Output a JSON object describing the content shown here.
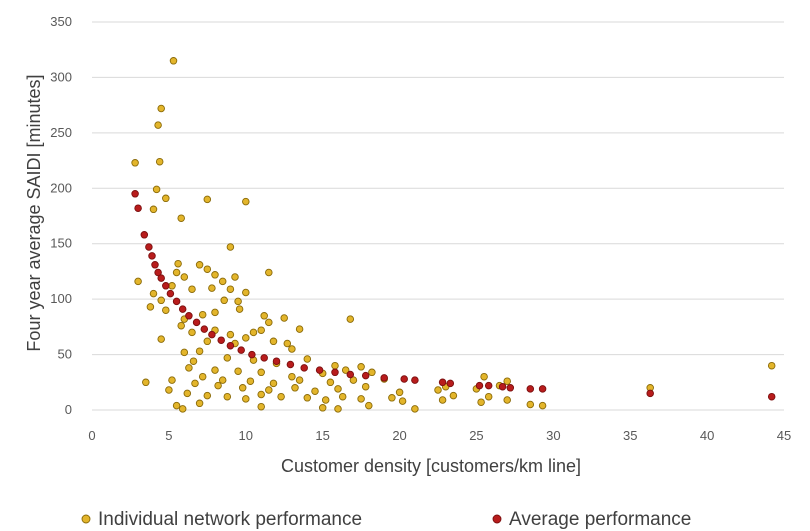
{
  "chart_data": {
    "type": "scatter",
    "xlabel": "Customer density [customers/km line]",
    "ylabel": "Four year average SAIDI [minutes]",
    "xlim": [
      0,
      45
    ],
    "ylim": [
      0,
      350
    ],
    "xticks": [
      0,
      5,
      10,
      15,
      20,
      25,
      30,
      35,
      40,
      45
    ],
    "yticks": [
      0,
      50,
      100,
      150,
      200,
      250,
      300,
      350
    ],
    "grid": "horizontal",
    "legend": "bottom",
    "series": [
      {
        "name": "Individual network performance",
        "color": "#e3b52b",
        "edge": "#8a6a08",
        "points": [
          [
            5.3,
            315
          ],
          [
            4.5,
            272
          ],
          [
            4.3,
            257
          ],
          [
            2.8,
            223
          ],
          [
            4.4,
            224
          ],
          [
            4.2,
            199
          ],
          [
            4.8,
            191
          ],
          [
            4.0,
            181
          ],
          [
            5.8,
            173
          ],
          [
            7.5,
            190
          ],
          [
            10.0,
            188
          ],
          [
            9.0,
            147
          ],
          [
            3.0,
            116
          ],
          [
            5.6,
            132
          ],
          [
            5.5,
            124
          ],
          [
            7.0,
            131
          ],
          [
            7.5,
            127
          ],
          [
            8.0,
            122
          ],
          [
            9.3,
            120
          ],
          [
            8.5,
            116
          ],
          [
            11.5,
            124
          ],
          [
            6.0,
            120
          ],
          [
            4.0,
            105
          ],
          [
            4.5,
            99
          ],
          [
            5.2,
            112
          ],
          [
            6.5,
            109
          ],
          [
            7.8,
            110
          ],
          [
            9.0,
            109
          ],
          [
            10.0,
            106
          ],
          [
            8.6,
            99
          ],
          [
            9.5,
            98
          ],
          [
            3.8,
            93
          ],
          [
            4.8,
            90
          ],
          [
            6.0,
            82
          ],
          [
            7.2,
            86
          ],
          [
            8.0,
            88
          ],
          [
            9.6,
            91
          ],
          [
            11.2,
            85
          ],
          [
            11.5,
            79
          ],
          [
            12.5,
            83
          ],
          [
            13.5,
            73
          ],
          [
            11.0,
            72
          ],
          [
            10.5,
            70
          ],
          [
            9.0,
            68
          ],
          [
            8.0,
            72
          ],
          [
            6.5,
            70
          ],
          [
            5.8,
            76
          ],
          [
            4.5,
            64
          ],
          [
            7.5,
            62
          ],
          [
            9.3,
            60
          ],
          [
            10.0,
            65
          ],
          [
            11.8,
            62
          ],
          [
            13.0,
            55
          ],
          [
            12.7,
            60
          ],
          [
            16.8,
            82
          ],
          [
            7.0,
            53
          ],
          [
            6.0,
            52
          ],
          [
            8.8,
            47
          ],
          [
            10.5,
            45
          ],
          [
            12.0,
            42
          ],
          [
            14.0,
            46
          ],
          [
            15.8,
            40
          ],
          [
            17.5,
            39
          ],
          [
            6.6,
            44
          ],
          [
            6.3,
            38
          ],
          [
            8.0,
            36
          ],
          [
            9.5,
            35
          ],
          [
            11.0,
            34
          ],
          [
            13.0,
            30
          ],
          [
            15.0,
            33
          ],
          [
            16.5,
            36
          ],
          [
            18.2,
            34
          ],
          [
            7.2,
            30
          ],
          [
            8.5,
            27
          ],
          [
            10.3,
            26
          ],
          [
            11.8,
            24
          ],
          [
            13.5,
            27
          ],
          [
            15.5,
            25
          ],
          [
            17.0,
            27
          ],
          [
            19.0,
            28
          ],
          [
            3.5,
            25
          ],
          [
            5.2,
            27
          ],
          [
            6.7,
            24
          ],
          [
            8.2,
            22
          ],
          [
            9.8,
            20
          ],
          [
            11.5,
            18
          ],
          [
            13.2,
            20
          ],
          [
            14.5,
            17
          ],
          [
            16.0,
            19
          ],
          [
            17.8,
            21
          ],
          [
            20.0,
            16
          ],
          [
            22.5,
            18
          ],
          [
            23.0,
            21
          ],
          [
            25.0,
            19
          ],
          [
            26.5,
            22
          ],
          [
            25.5,
            30
          ],
          [
            27.0,
            26
          ],
          [
            5.0,
            18
          ],
          [
            6.2,
            15
          ],
          [
            7.5,
            13
          ],
          [
            8.8,
            12
          ],
          [
            10.0,
            10
          ],
          [
            11.0,
            14
          ],
          [
            12.3,
            12
          ],
          [
            14.0,
            11
          ],
          [
            15.2,
            9
          ],
          [
            16.3,
            12
          ],
          [
            17.5,
            10
          ],
          [
            19.5,
            11
          ],
          [
            20.2,
            8
          ],
          [
            22.8,
            9
          ],
          [
            25.3,
            7
          ],
          [
            27.0,
            9
          ],
          [
            28.5,
            5
          ],
          [
            29.3,
            4
          ],
          [
            5.5,
            4
          ],
          [
            5.9,
            1
          ],
          [
            7.0,
            6
          ],
          [
            11.0,
            3
          ],
          [
            15.0,
            2
          ],
          [
            16.0,
            1
          ],
          [
            18.0,
            4
          ],
          [
            21.0,
            1
          ],
          [
            23.5,
            13
          ],
          [
            25.8,
            12
          ],
          [
            36.3,
            20
          ],
          [
            44.2,
            40
          ]
        ]
      },
      {
        "name": "Average performance",
        "color": "#b81c1c",
        "edge": "#7a0f0f",
        "points": [
          [
            2.8,
            195
          ],
          [
            3.0,
            182
          ],
          [
            3.4,
            158
          ],
          [
            3.7,
            147
          ],
          [
            3.9,
            139
          ],
          [
            4.1,
            131
          ],
          [
            4.3,
            124
          ],
          [
            4.5,
            119
          ],
          [
            4.8,
            112
          ],
          [
            5.1,
            105
          ],
          [
            5.5,
            98
          ],
          [
            5.9,
            91
          ],
          [
            6.3,
            85
          ],
          [
            6.8,
            79
          ],
          [
            7.3,
            73
          ],
          [
            7.8,
            68
          ],
          [
            8.4,
            63
          ],
          [
            9.0,
            58
          ],
          [
            9.7,
            54
          ],
          [
            10.4,
            50
          ],
          [
            11.2,
            47
          ],
          [
            12.0,
            44
          ],
          [
            12.9,
            41
          ],
          [
            13.8,
            38
          ],
          [
            14.8,
            36
          ],
          [
            15.8,
            34
          ],
          [
            16.8,
            32
          ],
          [
            17.8,
            31
          ],
          [
            19.0,
            29
          ],
          [
            20.3,
            28
          ],
          [
            21.0,
            27
          ],
          [
            22.8,
            25
          ],
          [
            23.3,
            24
          ],
          [
            25.2,
            22
          ],
          [
            25.8,
            22
          ],
          [
            26.7,
            21
          ],
          [
            27.2,
            20
          ],
          [
            28.5,
            19
          ],
          [
            29.3,
            19
          ],
          [
            36.3,
            15
          ],
          [
            44.2,
            12
          ]
        ]
      }
    ]
  }
}
